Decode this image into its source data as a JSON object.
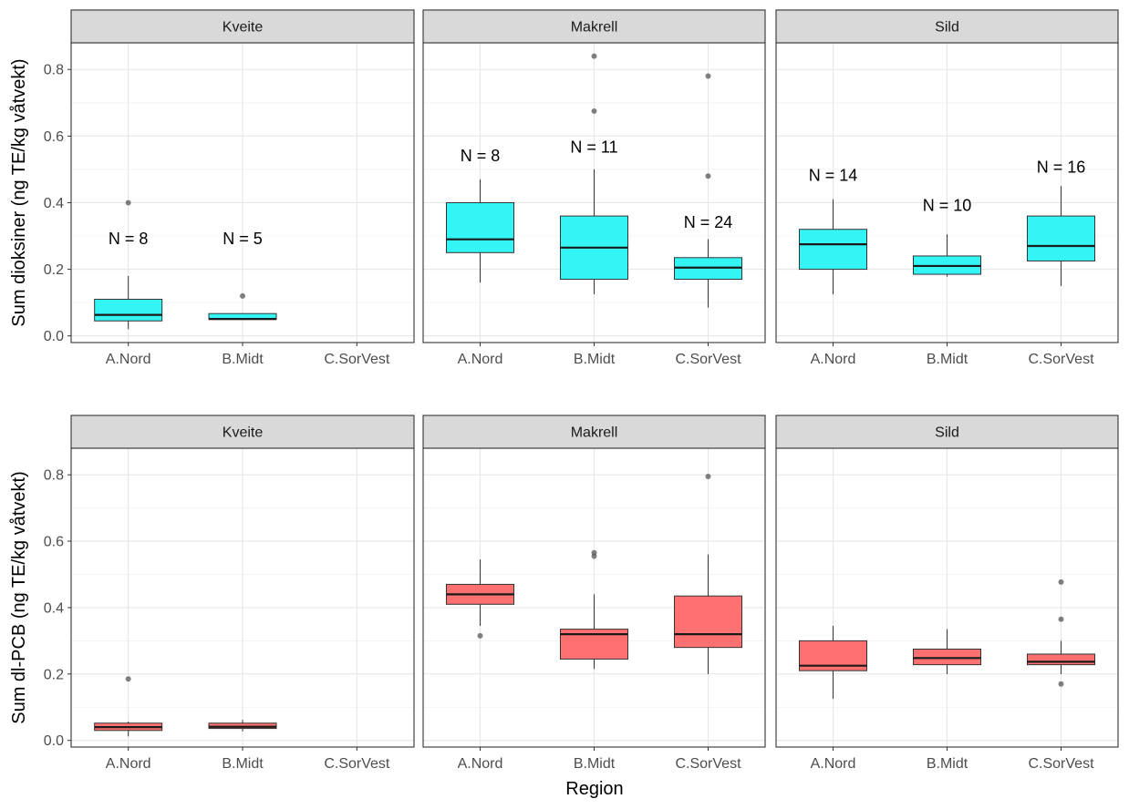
{
  "chart_data": [
    {
      "type": "boxplot",
      "ylabel": "Sum dioksiner (ng TE/kg våtvekt)",
      "xlabel": "",
      "ylim": [
        -0.02,
        0.88
      ],
      "yticks": [
        0.0,
        0.2,
        0.4,
        0.6,
        0.8
      ],
      "ytick_labels": [
        "0.0",
        "0.2",
        "0.4",
        "0.6",
        "0.8"
      ],
      "categories": [
        "A.Nord",
        "B.Midt",
        "C.SorVest"
      ],
      "fill_color": "#33f5f5",
      "grid": true,
      "panels": [
        {
          "facet": "Kveite",
          "boxes": [
            {
              "category": "A.Nord",
              "whisker_low": 0.02,
              "q1": 0.045,
              "median": 0.063,
              "q3": 0.11,
              "whisker_high": 0.18,
              "outliers": [
                0.4
              ],
              "n_label": "N = 8",
              "n_value": 0.275
            },
            {
              "category": "B.Midt",
              "whisker_low": 0.048,
              "q1": 0.049,
              "median": 0.051,
              "q3": 0.067,
              "whisker_high": 0.067,
              "outliers": [
                0.12
              ],
              "n_label": "N = 5",
              "n_value": 0.275
            }
          ]
        },
        {
          "facet": "Makrell",
          "boxes": [
            {
              "category": "A.Nord",
              "whisker_low": 0.16,
              "q1": 0.25,
              "median": 0.29,
              "q3": 0.4,
              "whisker_high": 0.47,
              "outliers": [],
              "n_label": "N = 8",
              "n_value": 0.525
            },
            {
              "category": "B.Midt",
              "whisker_low": 0.125,
              "q1": 0.17,
              "median": 0.265,
              "q3": 0.36,
              "whisker_high": 0.5,
              "outliers": [
                0.675,
                0.84
              ],
              "n_label": "N = 11",
              "n_value": 0.55
            },
            {
              "category": "C.SorVest",
              "whisker_low": 0.085,
              "q1": 0.17,
              "median": 0.205,
              "q3": 0.235,
              "whisker_high": 0.29,
              "outliers": [
                0.48,
                0.78
              ],
              "n_label": "N = 24",
              "n_value": 0.325
            }
          ]
        },
        {
          "facet": "Sild",
          "boxes": [
            {
              "category": "A.Nord",
              "whisker_low": 0.125,
              "q1": 0.2,
              "median": 0.275,
              "q3": 0.32,
              "whisker_high": 0.41,
              "outliers": [],
              "n_label": "N = 14",
              "n_value": 0.465
            },
            {
              "category": "B.Midt",
              "whisker_low": 0.178,
              "q1": 0.185,
              "median": 0.21,
              "q3": 0.24,
              "whisker_high": 0.305,
              "outliers": [],
              "n_label": "N = 10",
              "n_value": 0.375
            },
            {
              "category": "C.SorVest",
              "whisker_low": 0.15,
              "q1": 0.225,
              "median": 0.27,
              "q3": 0.36,
              "whisker_high": 0.45,
              "outliers": [],
              "n_label": "N = 16",
              "n_value": 0.49
            }
          ]
        }
      ]
    },
    {
      "type": "boxplot",
      "ylabel": "Sum dl-PCB (ng TE/kg våtvekt)",
      "xlabel": "Region",
      "ylim": [
        -0.02,
        0.88
      ],
      "yticks": [
        0.0,
        0.2,
        0.4,
        0.6,
        0.8
      ],
      "ytick_labels": [
        "0.0",
        "0.2",
        "0.4",
        "0.6",
        "0.8"
      ],
      "categories": [
        "A.Nord",
        "B.Midt",
        "C.SorVest"
      ],
      "fill_color": "#ff7070",
      "grid": true,
      "panels": [
        {
          "facet": "Kveite",
          "boxes": [
            {
              "category": "A.Nord",
              "whisker_low": 0.012,
              "q1": 0.03,
              "median": 0.04,
              "q3": 0.052,
              "whisker_high": 0.057,
              "outliers": [
                0.185
              ],
              "n_label": "",
              "n_value": null
            },
            {
              "category": "B.Midt",
              "whisker_low": 0.027,
              "q1": 0.036,
              "median": 0.041,
              "q3": 0.052,
              "whisker_high": 0.062,
              "outliers": [],
              "n_label": "",
              "n_value": null
            }
          ]
        },
        {
          "facet": "Makrell",
          "boxes": [
            {
              "category": "A.Nord",
              "whisker_low": 0.345,
              "q1": 0.41,
              "median": 0.44,
              "q3": 0.47,
              "whisker_high": 0.545,
              "outliers": [
                0.315
              ],
              "n_label": "",
              "n_value": null
            },
            {
              "category": "B.Midt",
              "whisker_low": 0.215,
              "q1": 0.245,
              "median": 0.32,
              "q3": 0.335,
              "whisker_high": 0.44,
              "outliers": [
                0.555,
                0.565
              ],
              "n_label": "",
              "n_value": null
            },
            {
              "category": "C.SorVest",
              "whisker_low": 0.2,
              "q1": 0.28,
              "median": 0.32,
              "q3": 0.435,
              "whisker_high": 0.56,
              "outliers": [
                0.795
              ],
              "n_label": "",
              "n_value": null
            }
          ]
        },
        {
          "facet": "Sild",
          "boxes": [
            {
              "category": "A.Nord",
              "whisker_low": 0.125,
              "q1": 0.21,
              "median": 0.225,
              "q3": 0.3,
              "whisker_high": 0.345,
              "outliers": [],
              "n_label": "",
              "n_value": null
            },
            {
              "category": "B.Midt",
              "whisker_low": 0.2,
              "q1": 0.228,
              "median": 0.248,
              "q3": 0.275,
              "whisker_high": 0.335,
              "outliers": [],
              "n_label": "",
              "n_value": null
            },
            {
              "category": "C.SorVest",
              "whisker_low": 0.2,
              "q1": 0.228,
              "median": 0.237,
              "q3": 0.26,
              "whisker_high": 0.3,
              "outliers": [
                0.17,
                0.365,
                0.477
              ],
              "n_label": "",
              "n_value": null
            }
          ]
        }
      ]
    }
  ]
}
